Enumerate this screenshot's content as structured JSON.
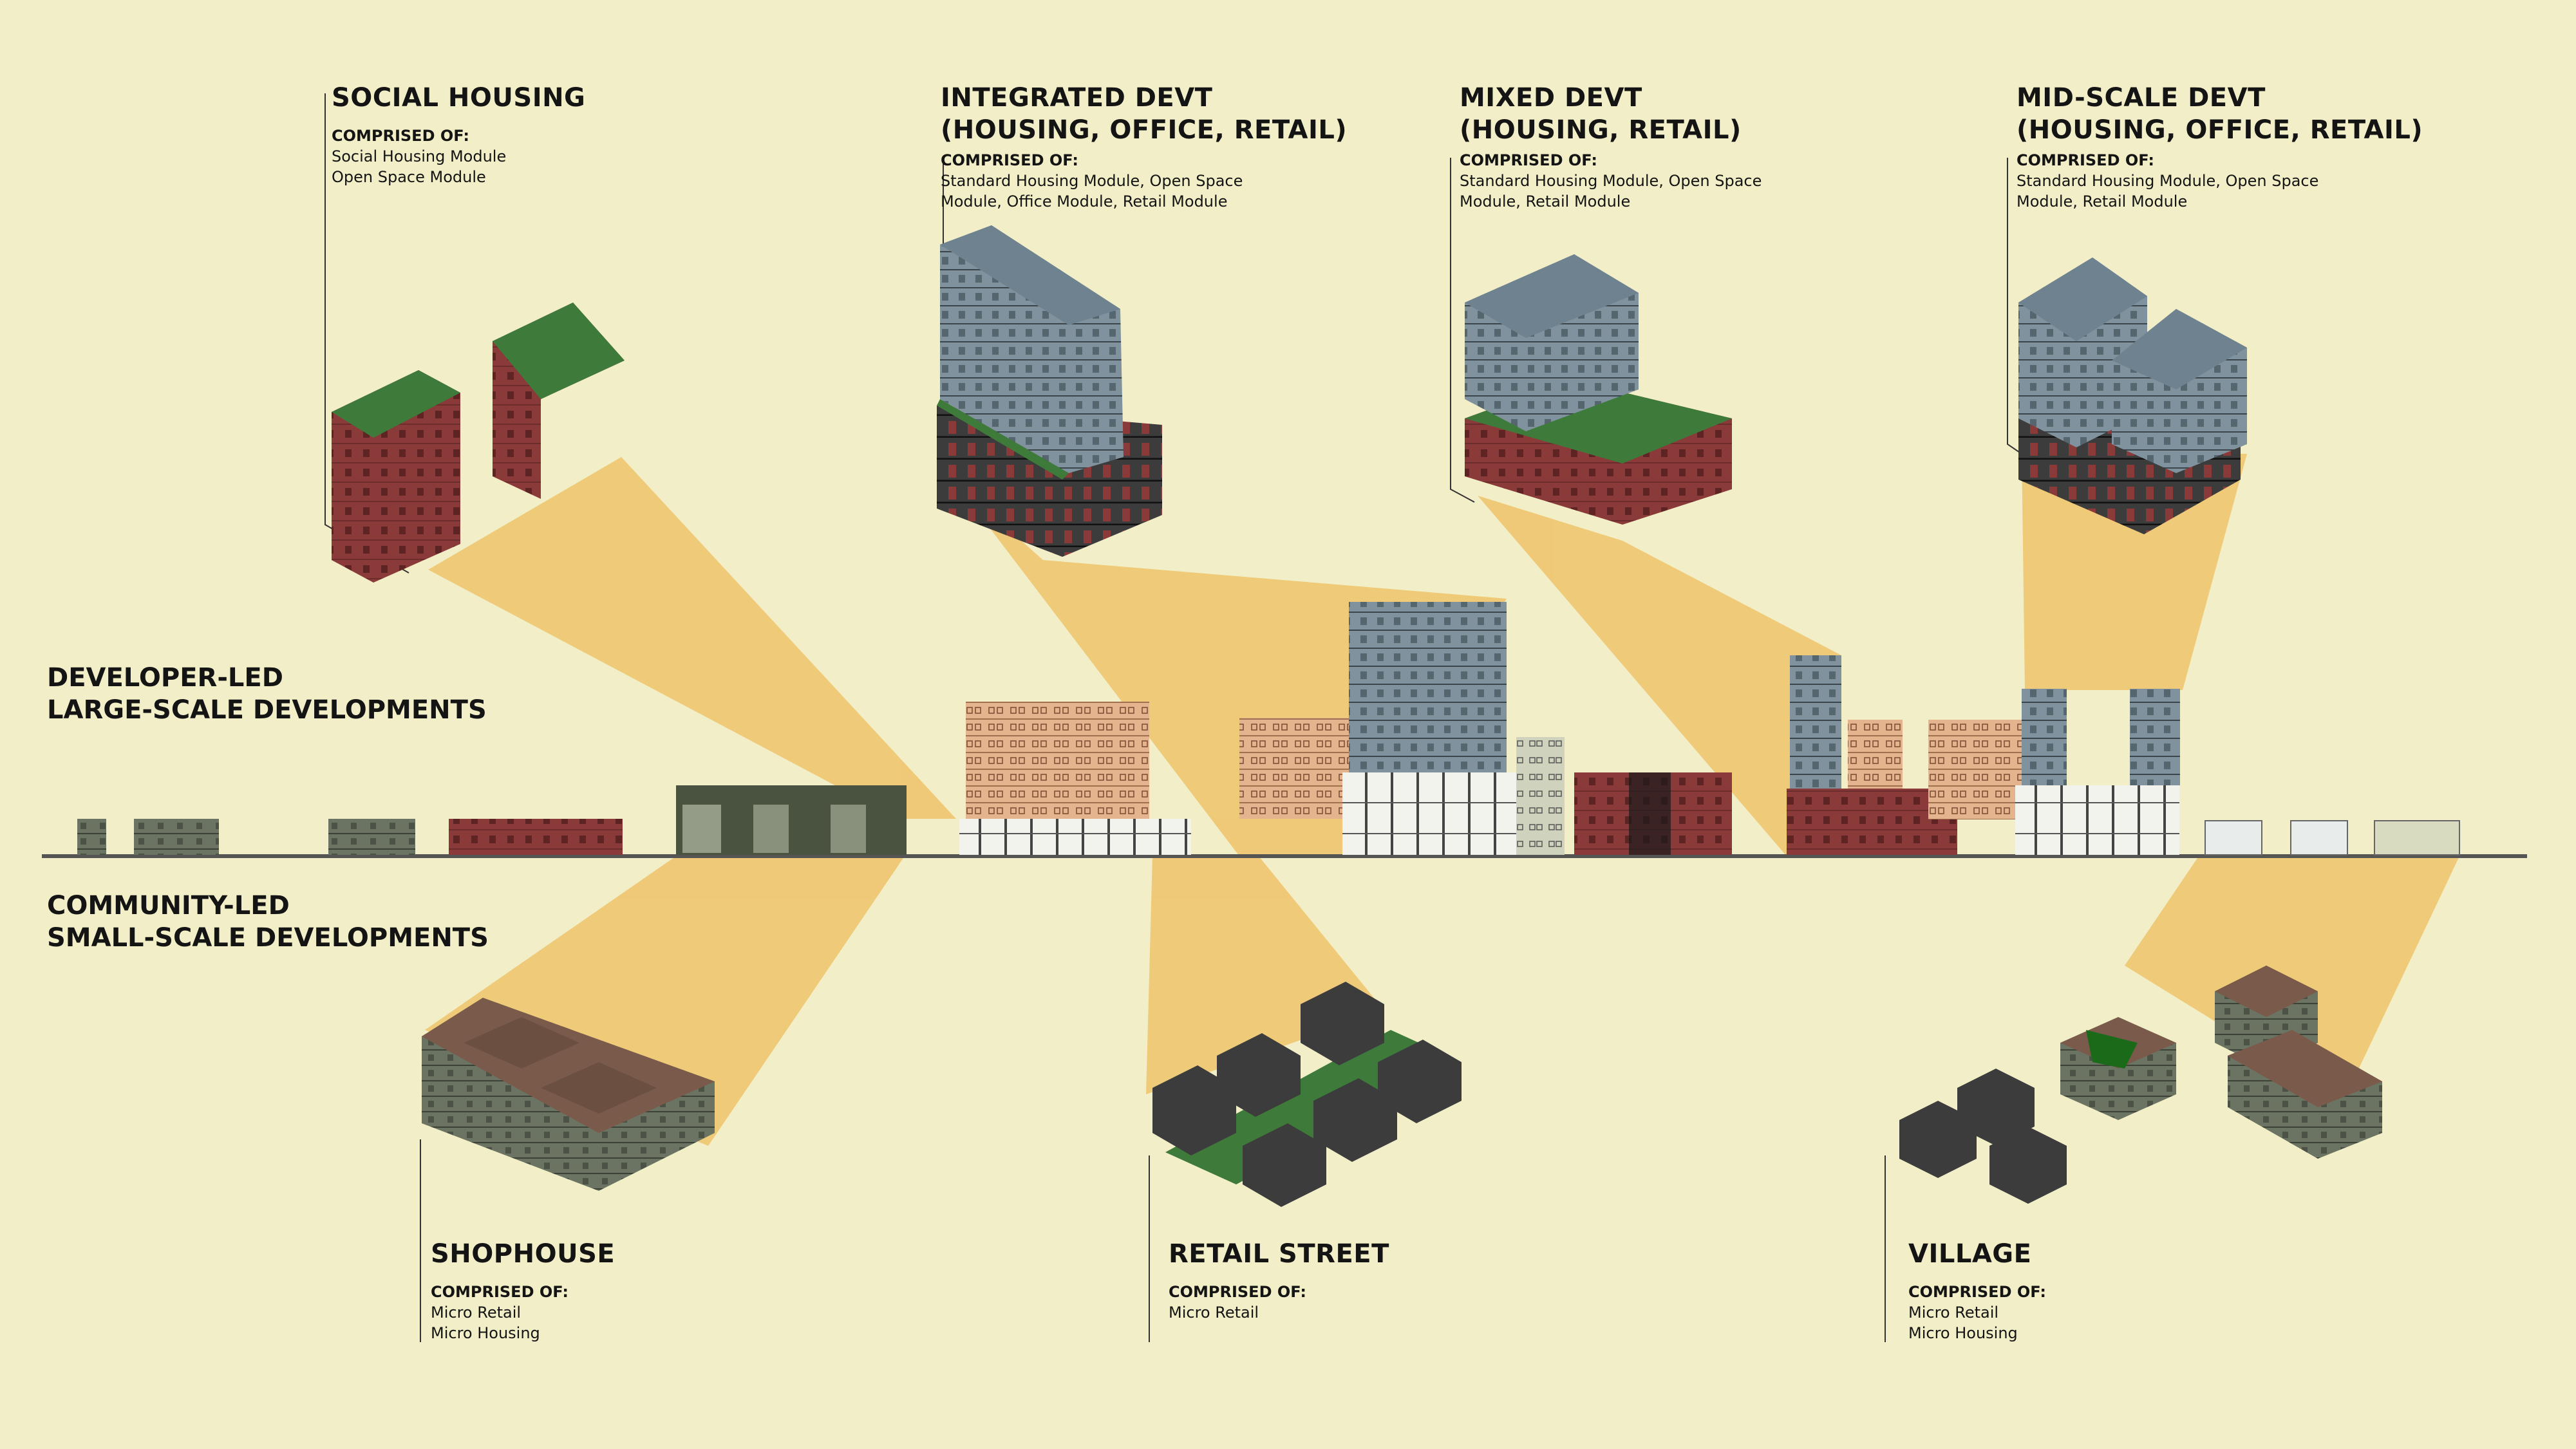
{
  "colors": {
    "background": "#f2efc8",
    "projection": "#efc36a",
    "brick": "#8b3a3a",
    "green_roof": "#3e7a3a",
    "blue_grey": "#7a8e9a",
    "dark_module": "#3a3a3a",
    "grey_green": "#6b7362",
    "peach": "#e8b48a"
  },
  "side_labels": {
    "developer": [
      "DEVELOPER-LED",
      "LARGE-SCALE DEVELOPMENTS"
    ],
    "community": [
      "COMMUNITY-LED",
      "SMALL-SCALE DEVELOPMENTS"
    ]
  },
  "typologies": {
    "social_housing": {
      "title": [
        "SOCIAL HOUSING"
      ],
      "comprised_label": "COMPRISED OF:",
      "items": [
        "Social Housing Module",
        "Open Space Module"
      ]
    },
    "integrated": {
      "title": [
        "INTEGRATED DEVT",
        "(HOUSING, OFFICE, RETAIL)"
      ],
      "comprised_label": "COMPRISED OF:",
      "items": [
        "Standard Housing Module, Open Space",
        "Module, Office Module, Retail Module"
      ]
    },
    "mixed": {
      "title": [
        "MIXED DEVT",
        "(HOUSING, RETAIL)"
      ],
      "comprised_label": "COMPRISED OF:",
      "items": [
        "Standard Housing Module, Open Space",
        "Module, Retail Module"
      ]
    },
    "midscale": {
      "title": [
        "MID-SCALE DEVT",
        "(HOUSING, OFFICE, RETAIL)"
      ],
      "comprised_label": "COMPRISED OF:",
      "items": [
        "Standard Housing Module, Open Space",
        "Module, Retail Module"
      ]
    },
    "shophouse": {
      "title": [
        "SHOPHOUSE"
      ],
      "comprised_label": "COMPRISED OF:",
      "items": [
        "Micro Retail",
        "Micro Housing"
      ]
    },
    "retail_street": {
      "title": [
        "RETAIL STREET"
      ],
      "comprised_label": "COMPRISED OF:",
      "items": [
        "Micro Retail"
      ]
    },
    "village": {
      "title": [
        "VILLAGE"
      ],
      "comprised_label": "COMPRISED OF:",
      "items": [
        "Micro Retail",
        "Micro Housing"
      ]
    }
  }
}
